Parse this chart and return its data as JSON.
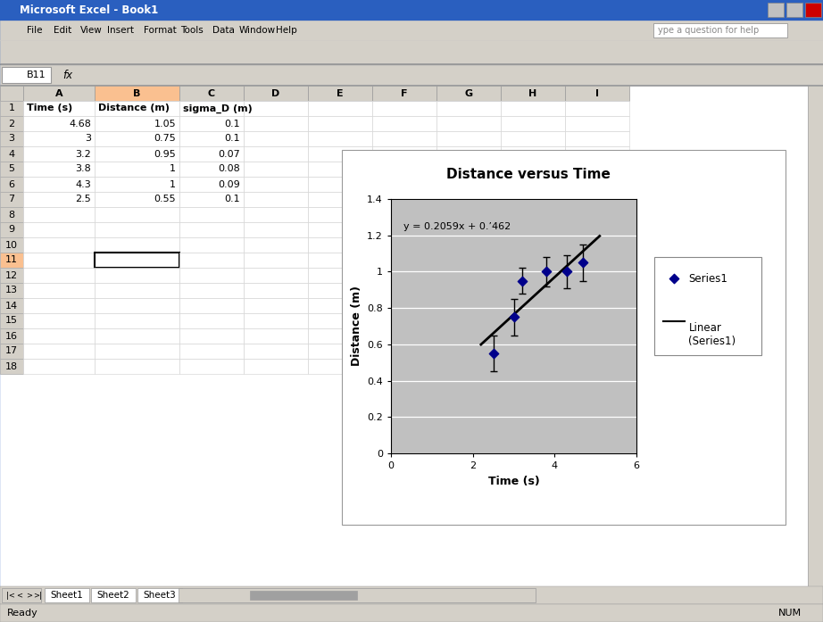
{
  "time": [
    4.68,
    3.0,
    3.2,
    3.8,
    4.3,
    2.5
  ],
  "distance": [
    1.05,
    0.75,
    0.95,
    1.0,
    1.0,
    0.55
  ],
  "sigma_d": [
    0.1,
    0.1,
    0.07,
    0.08,
    0.09,
    0.1
  ],
  "slope": 0.2059,
  "intercept": 0.1462,
  "equation_text": "y = 0.2059x + 0.’462",
  "title": "Distance versus Time",
  "xlabel": "Time (s)",
  "ylabel": "Distance (m)",
  "xlim": [
    0,
    6
  ],
  "ylim": [
    0,
    1.4
  ],
  "xticks": [
    0,
    2,
    4,
    6
  ],
  "ytick_labels": [
    "0",
    "0.2",
    "0.4",
    "0.6",
    "0.8",
    "1",
    "1.2",
    "1.4"
  ],
  "yticks": [
    0,
    0.2,
    0.4,
    0.6,
    0.8,
    1.0,
    1.2,
    1.4
  ],
  "marker_color": "#00008B",
  "line_color": "#000000",
  "plot_bg_color": "#C0C0C0",
  "grid_color": "#FFFFFF",
  "title_bar_color": "#2A5FBF",
  "menu_bar_color": "#D4D0C8",
  "sheet_bg_color": "#FFFFFF",
  "col_header_bg": "#D4D0C8",
  "col_b_header_bg": "#FAC090",
  "row11_num_bg": "#FAC090",
  "selected_cell_border": "#000000",
  "chart_bg": "#FFFFFF",
  "legend_bg": "#FFFFFF",
  "series_label": "Series1",
  "linear_label": "Linear\n(Series1)",
  "col_labels": [
    "A",
    "B",
    "C",
    "D",
    "E",
    "F",
    "G",
    "H",
    "I"
  ],
  "table_headers": [
    "Time (s)",
    "Distance (m)",
    "sigma_D (m)"
  ],
  "table_data_a": [
    "4.68",
    "3",
    "3.2",
    "3.8",
    "4.3",
    "2.5"
  ],
  "table_data_b": [
    "1.05",
    "0.75",
    "0.95",
    "1",
    "1",
    "0.55"
  ],
  "table_data_c": [
    "0.1",
    "0.1",
    "0.07",
    "0.08",
    "0.09",
    "0.1"
  ],
  "num_rows": 18,
  "line_x_start": 2.2,
  "line_x_end": 5.1
}
